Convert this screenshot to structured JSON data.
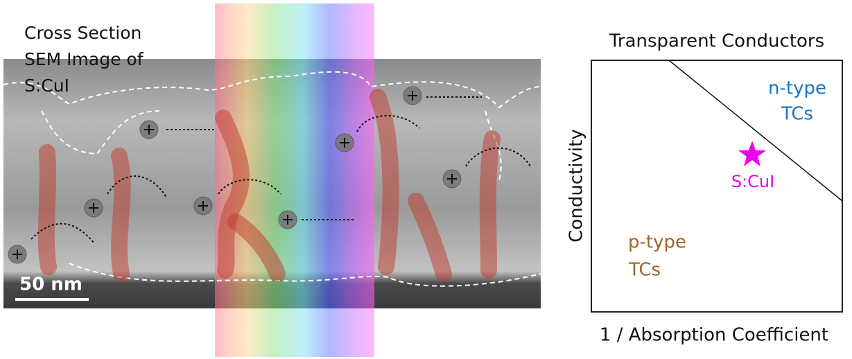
{
  "sem_panel": {
    "caption_lines": [
      "Cross Section",
      "SEM Image of",
      "S:CuI"
    ],
    "scale_bar": "50 nm"
  },
  "plot_panel": {
    "title": "Transparent Conductors",
    "y_label": "Conductivity",
    "x_label": "1 / Absorption Coefficient",
    "regions": [
      {
        "lines": [
          "n-type",
          "TCs"
        ]
      },
      {
        "lines": [
          "p-type",
          "TCs"
        ]
      }
    ],
    "marker_label": "S:CuI"
  }
}
